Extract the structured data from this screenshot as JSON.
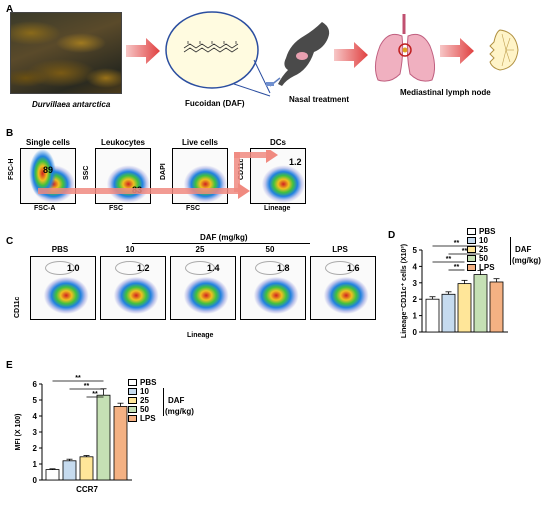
{
  "panel_a": {
    "letter": "A",
    "seaweed_label": "Durvillaea antarctica",
    "fucoidan_label": "Fucoidan (DAF)",
    "nasal_label": "Nasal treatment",
    "lymph_label": "Mediastinal lymph node"
  },
  "panel_b": {
    "letter": "B",
    "plots": [
      {
        "title": "Single cells",
        "pct": "89",
        "xlabel": "FSC-A",
        "ylabel": "FSC-H"
      },
      {
        "title": "Leukocytes",
        "pct": "83",
        "xlabel": "FSC",
        "ylabel": "SSC"
      },
      {
        "title": "Live cells",
        "pct": "96",
        "xlabel": "FSC",
        "ylabel": "DAPI"
      },
      {
        "title": "DCs",
        "pct": "1.2",
        "xlabel": "Lineage",
        "ylabel": "CD11c"
      }
    ]
  },
  "panel_c": {
    "letter": "C",
    "daf_header": "DAF (mg/kg)",
    "ylabel": "CD11c",
    "xlabel": "Lineage",
    "plots": [
      {
        "title": "PBS",
        "pct": "1.0"
      },
      {
        "title": "10",
        "pct": "1.2"
      },
      {
        "title": "25",
        "pct": "1.4"
      },
      {
        "title": "50",
        "pct": "1.8"
      },
      {
        "title": "LPS",
        "pct": "1.6"
      }
    ]
  },
  "legend": {
    "items": [
      "PBS",
      "10",
      "25",
      "50",
      "LPS"
    ],
    "colors": [
      "#ffffff",
      "#c6dbef",
      "#ffe699",
      "#c5e0b4",
      "#f4b183"
    ],
    "daf_label": "DAF",
    "unit_label": "(mg/kg)"
  },
  "panel_d": {
    "letter": "D",
    "sig": "**"
  },
  "panel_e": {
    "letter": "E",
    "sig": "**"
  },
  "chart_data": [
    {
      "type": "bar",
      "categories": [
        "PBS",
        "10",
        "25",
        "50",
        "LPS"
      ],
      "values": [
        2.0,
        2.3,
        2.95,
        3.5,
        3.05
      ],
      "errors": [
        0.15,
        0.15,
        0.2,
        0.25,
        0.2
      ],
      "ylabel": "Lineage⁻CD11c⁺ cells (X10³)",
      "ylim": [
        0,
        5
      ],
      "yticks": [
        "0",
        "1",
        "2",
        "3",
        "4",
        "5"
      ],
      "colors": [
        "#ffffff",
        "#c6dbef",
        "#ffe699",
        "#c5e0b4",
        "#f4b183"
      ]
    },
    {
      "type": "bar",
      "categories": [
        "PBS",
        "10",
        "25",
        "50",
        "LPS"
      ],
      "values": [
        0.65,
        1.2,
        1.45,
        5.3,
        4.6
      ],
      "errors": [
        0.05,
        0.1,
        0.08,
        0.4,
        0.2
      ],
      "ylabel": "MFI (X 100)",
      "xlabel": "CCR7",
      "ylim": [
        0,
        6
      ],
      "yticks": [
        "0",
        "1",
        "2",
        "3",
        "4",
        "5",
        "6"
      ],
      "colors": [
        "#ffffff",
        "#c6dbef",
        "#ffe699",
        "#c5e0b4",
        "#f4b183"
      ]
    }
  ]
}
